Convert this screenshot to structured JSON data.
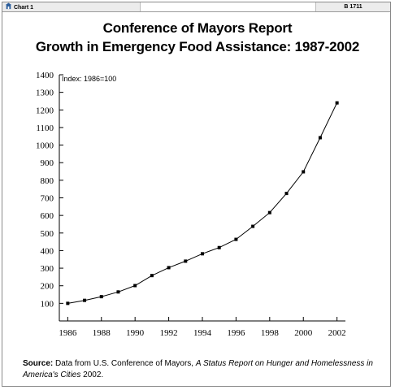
{
  "header": {
    "left_tab": "Chart 1",
    "right_tab": "B 1711"
  },
  "chart_data": {
    "type": "line",
    "title": "Conference of Mayors Report",
    "subtitle": "Growth in Emergency Food Assistance: 1987-2002",
    "annotation": "Index: 1986=100",
    "xlabel": "",
    "ylabel": "",
    "x": [
      1986,
      1987,
      1988,
      1989,
      1990,
      1991,
      1992,
      1993,
      1994,
      1995,
      1996,
      1997,
      1998,
      1999,
      2000,
      2001,
      2002
    ],
    "series": [
      {
        "values": [
          100,
          117,
          138,
          165,
          201,
          258,
          303,
          340,
          382,
          417,
          464,
          538,
          616,
          725,
          848,
          1042,
          1240
        ]
      }
    ],
    "xlim": [
      1985.5,
      2002.5
    ],
    "ylim": [
      0,
      1400
    ],
    "x_ticks": [
      1986,
      1988,
      1990,
      1992,
      1994,
      1996,
      1998,
      2000,
      2002
    ],
    "x_tick_labels": [
      "1986",
      "1988",
      "1990",
      "1992",
      "1994",
      "1996",
      "1998",
      "2000",
      "2002"
    ],
    "y_ticks": [
      100,
      200,
      300,
      400,
      500,
      600,
      700,
      800,
      900,
      1000,
      1100,
      1200,
      1300,
      1400
    ],
    "y_tick_labels": [
      "100",
      "200",
      "300",
      "400",
      "500",
      "600",
      "700",
      "800",
      "900",
      "1000",
      "1100",
      "1200",
      "1300",
      "1400"
    ],
    "grid": false,
    "legend": "none",
    "line_color": "#000000",
    "marker": "square"
  },
  "source": {
    "label": "Source:",
    "text": "Data from U.S. Conference of Mayors,",
    "italic_title": "A Status Report on Hunger and Homelessness in America's Cities",
    "year": "2002."
  }
}
